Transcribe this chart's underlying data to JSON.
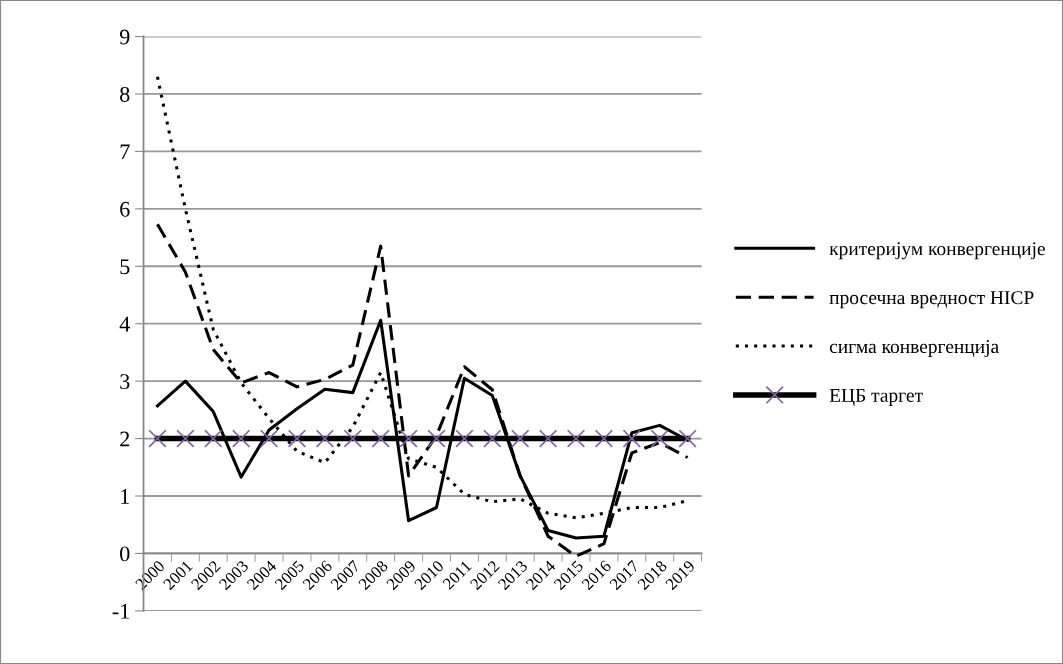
{
  "chart_data": {
    "type": "line",
    "categories": [
      "2000",
      "2001",
      "2002",
      "2003",
      "2004",
      "2005",
      "2006",
      "2007",
      "2008",
      "2009",
      "2010",
      "2011",
      "2012",
      "2013",
      "2014",
      "2015",
      "2016",
      "2017",
      "2018",
      "2019"
    ],
    "series": [
      {
        "name": "критеријум конвергенције",
        "color": "#000000",
        "line_style": "solid",
        "values": [
          2.57,
          3.0,
          2.47,
          1.33,
          2.15,
          2.52,
          2.86,
          2.8,
          4.06,
          0.57,
          0.8,
          3.05,
          2.75,
          1.35,
          0.4,
          0.27,
          0.3,
          2.1,
          2.23,
          1.97
        ]
      },
      {
        "name": "просечна вредност HICP",
        "color": "#000000",
        "line_style": "dashed",
        "values": [
          5.73,
          4.9,
          3.55,
          2.97,
          3.15,
          2.9,
          3.03,
          3.28,
          5.35,
          1.35,
          2.05,
          3.25,
          2.85,
          1.35,
          0.3,
          -0.05,
          0.17,
          1.75,
          1.93,
          1.67
        ]
      },
      {
        "name": "сигма конвергенција",
        "color": "#000000",
        "line_style": "dotted",
        "values": [
          8.3,
          6.0,
          3.9,
          2.97,
          2.35,
          1.78,
          1.58,
          2.2,
          3.15,
          1.65,
          1.5,
          1.03,
          0.9,
          0.95,
          0.7,
          0.62,
          0.7,
          0.8,
          0.8,
          0.92
        ]
      },
      {
        "name": "ЕЦБ таргет",
        "color": "#000000",
        "line_style": "solid",
        "marker": "cross",
        "colors": [
          "#8064a2",
          "#8064a2",
          "#8064a2",
          "#8064a2",
          "#8064a2",
          "#8064a2",
          "#8064a2",
          "#8064a2",
          "#8064a2",
          "#8064a2",
          "#8064a2",
          "#8064a2",
          "#8064a2",
          "#8064a2",
          "#8064a2",
          "#8064a2",
          "#8064a2",
          "#8064a2",
          "#8064a2",
          "#8064a2"
        ],
        "values": [
          2,
          2,
          2,
          2,
          2,
          2,
          2,
          2,
          2,
          2,
          2,
          2,
          2,
          2,
          2,
          2,
          2,
          2,
          2,
          2
        ]
      }
    ],
    "ylim": [
      -1,
      9
    ],
    "yticks": [
      -1,
      0,
      1,
      2,
      3,
      4,
      5,
      6,
      7,
      8,
      9
    ],
    "grid": "y",
    "legend": "right"
  }
}
